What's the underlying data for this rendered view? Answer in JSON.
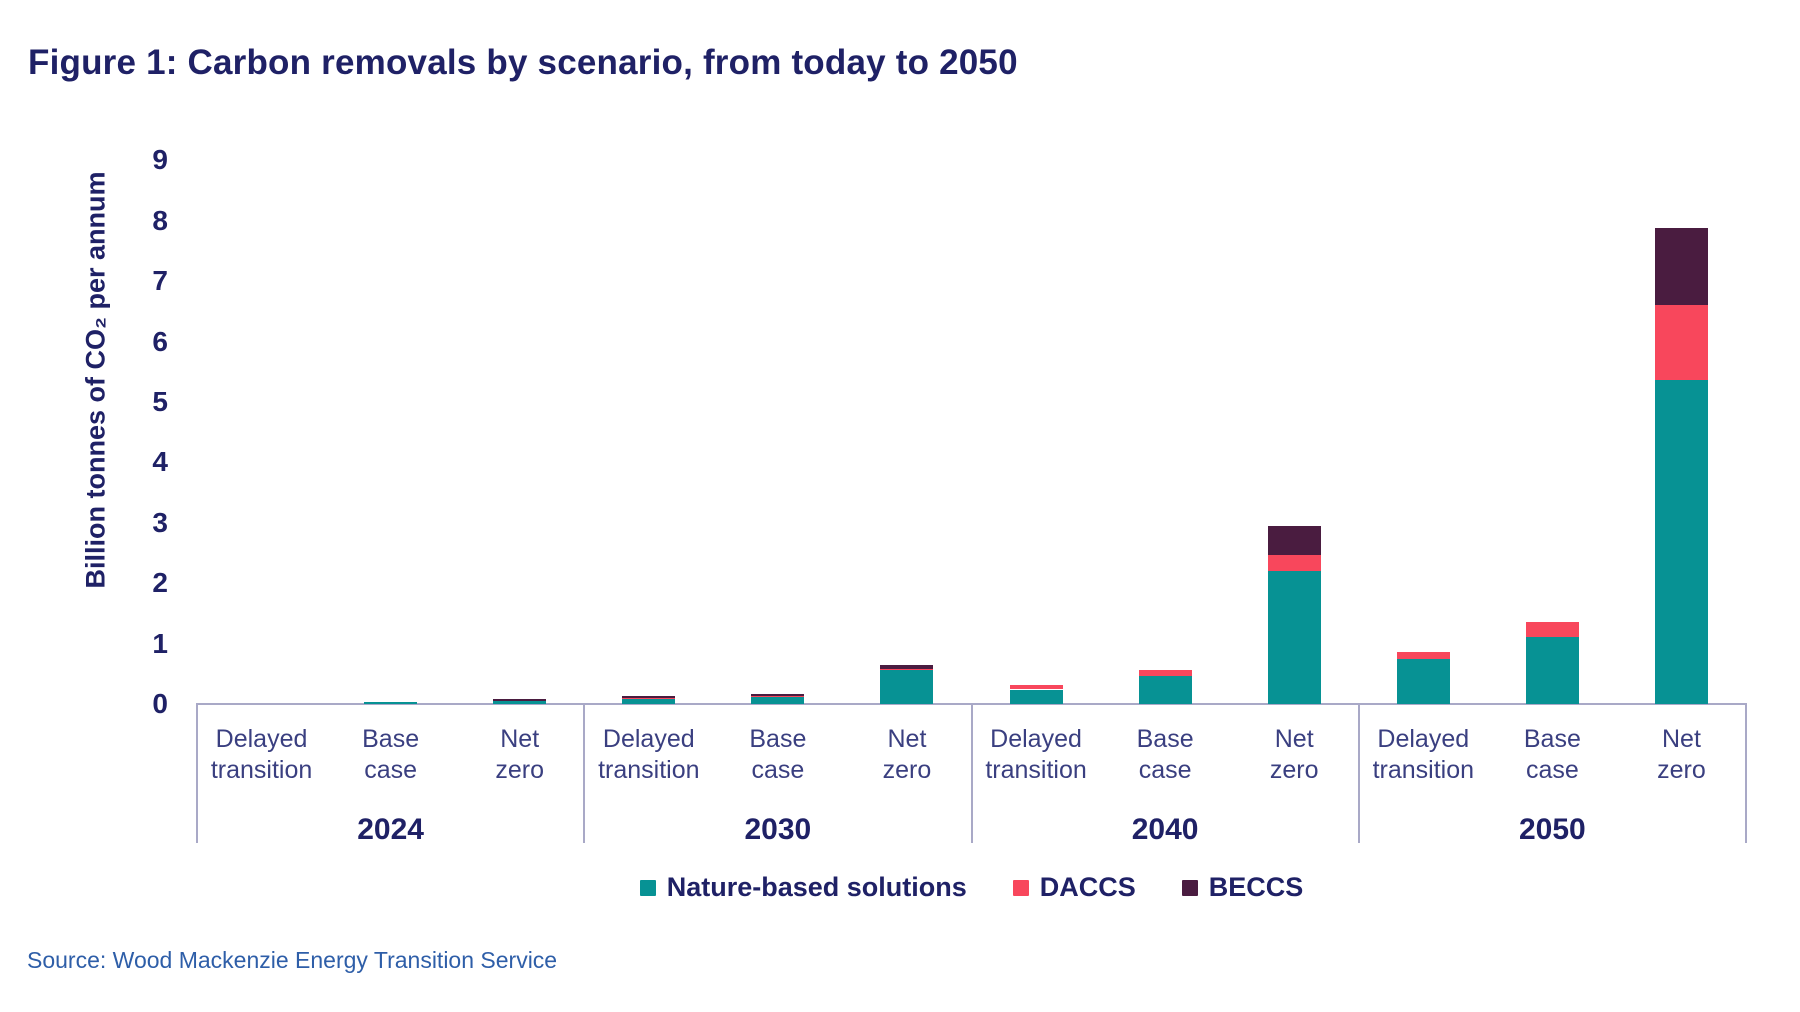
{
  "title": "Figure 1: Carbon removals by scenario, from today to 2050",
  "source": "Source: Wood Mackenzie Energy Transition Service",
  "colors": {
    "nature_based_solutions": "#079294",
    "daccs": "#F8475C",
    "beccs": "#4A1C40",
    "axis_line": "#A9A9C7",
    "heading_navy": "#1F2166",
    "category_navy": "#3A3F80",
    "source_blue": "#2E5EA8"
  },
  "chart_data": {
    "type": "bar",
    "stacked": true,
    "title": "Figure 1: Carbon removals by scenario, from today to 2050",
    "xlabel": "",
    "ylabel": "Billion tonnes of CO₂ per annum",
    "ylim": [
      0,
      9
    ],
    "yticks": [
      0,
      1,
      2,
      3,
      4,
      5,
      6,
      7,
      8,
      9
    ],
    "grid": false,
    "legend_position": "bottom",
    "years": [
      "2024",
      "2030",
      "2040",
      "2050"
    ],
    "scenarios": [
      "Delayed transition",
      "Base case",
      "Net zero"
    ],
    "scenario_label_lines": [
      [
        "Delayed",
        "transition"
      ],
      [
        "Base",
        "case"
      ],
      [
        "Net",
        "zero"
      ]
    ],
    "units": "billion tonnes CO2 per annum",
    "series": [
      {
        "name": "Nature-based solutions",
        "color": "#079294",
        "values": [
          [
            0,
            0.04,
            0.05
          ],
          [
            0.09,
            0.12,
            0.56
          ],
          [
            0.24,
            0.47,
            2.2
          ],
          [
            0.75,
            1.11,
            5.37
          ]
        ]
      },
      {
        "name": "DACCS",
        "color": "#F8475C",
        "values": [
          [
            0,
            0,
            0
          ],
          [
            0.01,
            0.01,
            0.02
          ],
          [
            0.07,
            0.1,
            0.27
          ],
          [
            0.11,
            0.24,
            1.23
          ]
        ]
      },
      {
        "name": "BECCS",
        "color": "#4A1C40",
        "values": [
          [
            0,
            0,
            0.03
          ],
          [
            0.03,
            0.03,
            0.07
          ],
          [
            0,
            0,
            0.48
          ],
          [
            0,
            0,
            1.28
          ]
        ]
      }
    ]
  }
}
